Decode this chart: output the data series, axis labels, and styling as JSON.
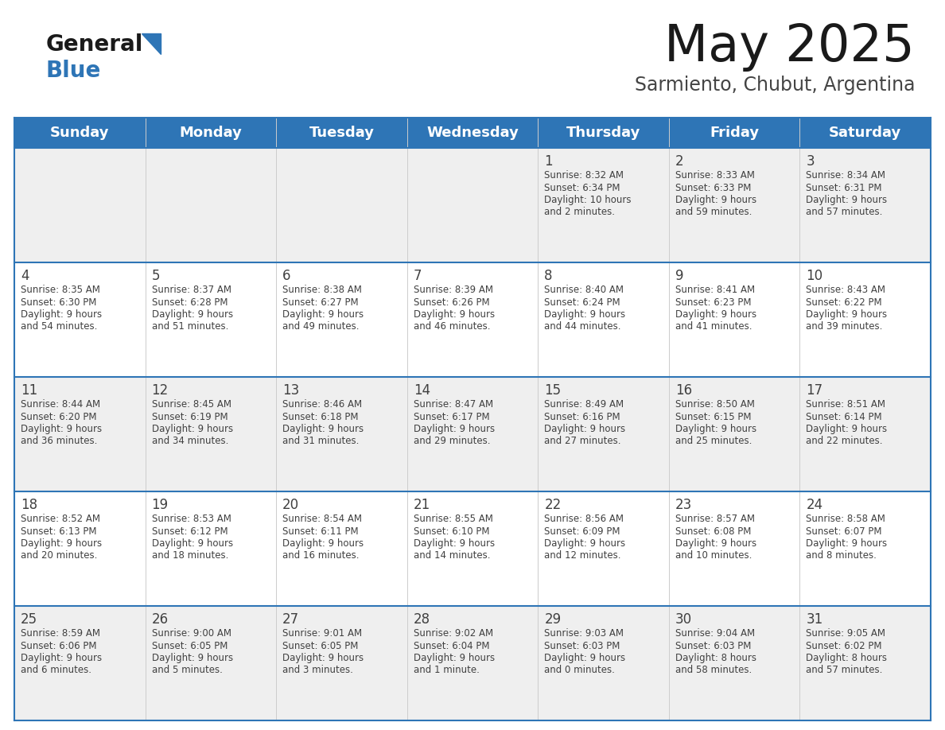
{
  "title": "May 2025",
  "subtitle": "Sarmiento, Chubut, Argentina",
  "header_bg": "#2E75B6",
  "header_text_color": "#FFFFFF",
  "day_names": [
    "Sunday",
    "Monday",
    "Tuesday",
    "Wednesday",
    "Thursday",
    "Friday",
    "Saturday"
  ],
  "row_bg_even": "#EFEFEF",
  "row_bg_odd": "#FFFFFF",
  "border_color": "#2E75B6",
  "text_color": "#404040",
  "days": [
    {
      "day": 1,
      "col": 4,
      "row": 0,
      "sunrise": "8:32 AM",
      "sunset": "6:34 PM",
      "daylight": "10 hours and 2 minutes."
    },
    {
      "day": 2,
      "col": 5,
      "row": 0,
      "sunrise": "8:33 AM",
      "sunset": "6:33 PM",
      "daylight": "9 hours and 59 minutes."
    },
    {
      "day": 3,
      "col": 6,
      "row": 0,
      "sunrise": "8:34 AM",
      "sunset": "6:31 PM",
      "daylight": "9 hours and 57 minutes."
    },
    {
      "day": 4,
      "col": 0,
      "row": 1,
      "sunrise": "8:35 AM",
      "sunset": "6:30 PM",
      "daylight": "9 hours and 54 minutes."
    },
    {
      "day": 5,
      "col": 1,
      "row": 1,
      "sunrise": "8:37 AM",
      "sunset": "6:28 PM",
      "daylight": "9 hours and 51 minutes."
    },
    {
      "day": 6,
      "col": 2,
      "row": 1,
      "sunrise": "8:38 AM",
      "sunset": "6:27 PM",
      "daylight": "9 hours and 49 minutes."
    },
    {
      "day": 7,
      "col": 3,
      "row": 1,
      "sunrise": "8:39 AM",
      "sunset": "6:26 PM",
      "daylight": "9 hours and 46 minutes."
    },
    {
      "day": 8,
      "col": 4,
      "row": 1,
      "sunrise": "8:40 AM",
      "sunset": "6:24 PM",
      "daylight": "9 hours and 44 minutes."
    },
    {
      "day": 9,
      "col": 5,
      "row": 1,
      "sunrise": "8:41 AM",
      "sunset": "6:23 PM",
      "daylight": "9 hours and 41 minutes."
    },
    {
      "day": 10,
      "col": 6,
      "row": 1,
      "sunrise": "8:43 AM",
      "sunset": "6:22 PM",
      "daylight": "9 hours and 39 minutes."
    },
    {
      "day": 11,
      "col": 0,
      "row": 2,
      "sunrise": "8:44 AM",
      "sunset": "6:20 PM",
      "daylight": "9 hours and 36 minutes."
    },
    {
      "day": 12,
      "col": 1,
      "row": 2,
      "sunrise": "8:45 AM",
      "sunset": "6:19 PM",
      "daylight": "9 hours and 34 minutes."
    },
    {
      "day": 13,
      "col": 2,
      "row": 2,
      "sunrise": "8:46 AM",
      "sunset": "6:18 PM",
      "daylight": "9 hours and 31 minutes."
    },
    {
      "day": 14,
      "col": 3,
      "row": 2,
      "sunrise": "8:47 AM",
      "sunset": "6:17 PM",
      "daylight": "9 hours and 29 minutes."
    },
    {
      "day": 15,
      "col": 4,
      "row": 2,
      "sunrise": "8:49 AM",
      "sunset": "6:16 PM",
      "daylight": "9 hours and 27 minutes."
    },
    {
      "day": 16,
      "col": 5,
      "row": 2,
      "sunrise": "8:50 AM",
      "sunset": "6:15 PM",
      "daylight": "9 hours and 25 minutes."
    },
    {
      "day": 17,
      "col": 6,
      "row": 2,
      "sunrise": "8:51 AM",
      "sunset": "6:14 PM",
      "daylight": "9 hours and 22 minutes."
    },
    {
      "day": 18,
      "col": 0,
      "row": 3,
      "sunrise": "8:52 AM",
      "sunset": "6:13 PM",
      "daylight": "9 hours and 20 minutes."
    },
    {
      "day": 19,
      "col": 1,
      "row": 3,
      "sunrise": "8:53 AM",
      "sunset": "6:12 PM",
      "daylight": "9 hours and 18 minutes."
    },
    {
      "day": 20,
      "col": 2,
      "row": 3,
      "sunrise": "8:54 AM",
      "sunset": "6:11 PM",
      "daylight": "9 hours and 16 minutes."
    },
    {
      "day": 21,
      "col": 3,
      "row": 3,
      "sunrise": "8:55 AM",
      "sunset": "6:10 PM",
      "daylight": "9 hours and 14 minutes."
    },
    {
      "day": 22,
      "col": 4,
      "row": 3,
      "sunrise": "8:56 AM",
      "sunset": "6:09 PM",
      "daylight": "9 hours and 12 minutes."
    },
    {
      "day": 23,
      "col": 5,
      "row": 3,
      "sunrise": "8:57 AM",
      "sunset": "6:08 PM",
      "daylight": "9 hours and 10 minutes."
    },
    {
      "day": 24,
      "col": 6,
      "row": 3,
      "sunrise": "8:58 AM",
      "sunset": "6:07 PM",
      "daylight": "9 hours and 8 minutes."
    },
    {
      "day": 25,
      "col": 0,
      "row": 4,
      "sunrise": "8:59 AM",
      "sunset": "6:06 PM",
      "daylight": "9 hours and 6 minutes."
    },
    {
      "day": 26,
      "col": 1,
      "row": 4,
      "sunrise": "9:00 AM",
      "sunset": "6:05 PM",
      "daylight": "9 hours and 5 minutes."
    },
    {
      "day": 27,
      "col": 2,
      "row": 4,
      "sunrise": "9:01 AM",
      "sunset": "6:05 PM",
      "daylight": "9 hours and 3 minutes."
    },
    {
      "day": 28,
      "col": 3,
      "row": 4,
      "sunrise": "9:02 AM",
      "sunset": "6:04 PM",
      "daylight": "9 hours and 1 minute."
    },
    {
      "day": 29,
      "col": 4,
      "row": 4,
      "sunrise": "9:03 AM",
      "sunset": "6:03 PM",
      "daylight": "9 hours and 0 minutes."
    },
    {
      "day": 30,
      "col": 5,
      "row": 4,
      "sunrise": "9:04 AM",
      "sunset": "6:03 PM",
      "daylight": "8 hours and 58 minutes."
    },
    {
      "day": 31,
      "col": 6,
      "row": 4,
      "sunrise": "9:05 AM",
      "sunset": "6:02 PM",
      "daylight": "8 hours and 57 minutes."
    }
  ]
}
